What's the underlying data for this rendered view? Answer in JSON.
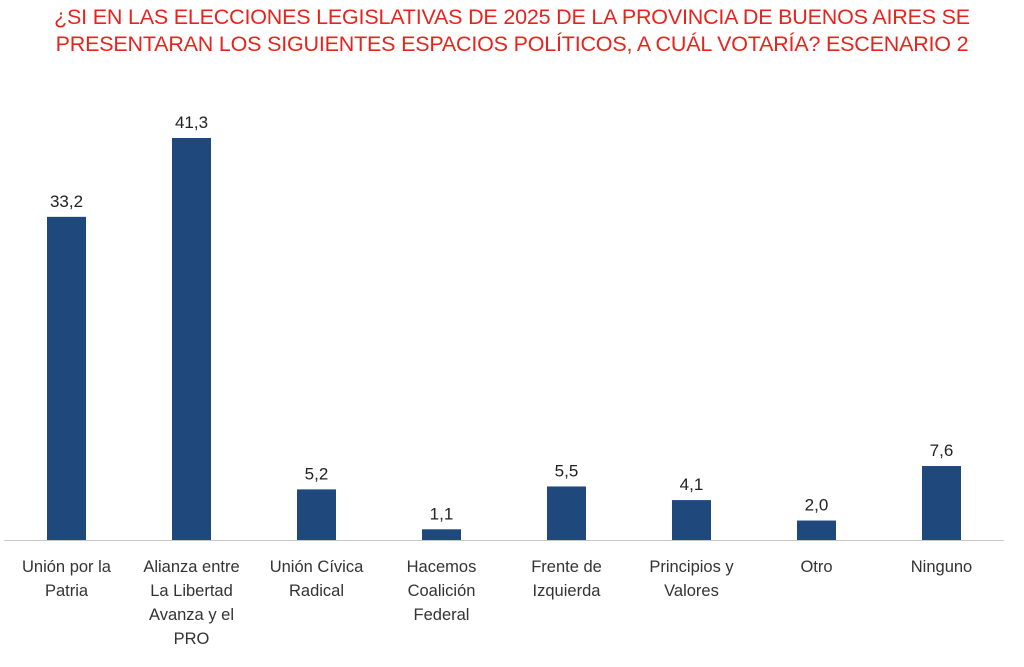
{
  "title_lines": [
    "¿SI EN LAS ELECCIONES LEGISLATIVAS DE 2025 DE LA PROVINCIA DE BUENOS AIRES SE",
    "PRESENTARAN LOS SIGUIENTES ESPACIOS POLÍTICOS, A CUÁL VOTARÍA? ESCENARIO 2"
  ],
  "colors": {
    "title": "#e8231b",
    "bar": "#1f497d",
    "axis": "#c8c8c8"
  },
  "chart_data": {
    "type": "bar",
    "title": "¿SI EN LAS ELECCIONES LEGISLATIVAS DE 2025 DE LA PROVINCIA DE BUENOS AIRES SE PRESENTARAN LOS SIGUIENTES ESPACIOS POLÍTICOS, A CUÁL VOTARÍA? ESCENARIO 2",
    "categories": [
      [
        "Unión por la",
        "Patria"
      ],
      [
        "Alianza entre",
        "La Libertad",
        "Avanza y el",
        "PRO"
      ],
      [
        "Unión Cívica",
        "Radical"
      ],
      [
        "Hacemos",
        "Coalición",
        "Federal"
      ],
      [
        "Frente de",
        "Izquierda"
      ],
      [
        "Principios y",
        "Valores"
      ],
      [
        "Otro"
      ],
      [
        "Ninguno"
      ]
    ],
    "values": [
      33.2,
      41.3,
      5.2,
      1.1,
      5.5,
      4.1,
      2.0,
      7.6
    ],
    "value_labels": [
      "33,2",
      "41,3",
      "5,2",
      "1,1",
      "5,5",
      "4,1",
      "2,0",
      "7,6"
    ],
    "ylim": [
      0,
      41.3
    ],
    "grid": false,
    "legend": "none"
  }
}
